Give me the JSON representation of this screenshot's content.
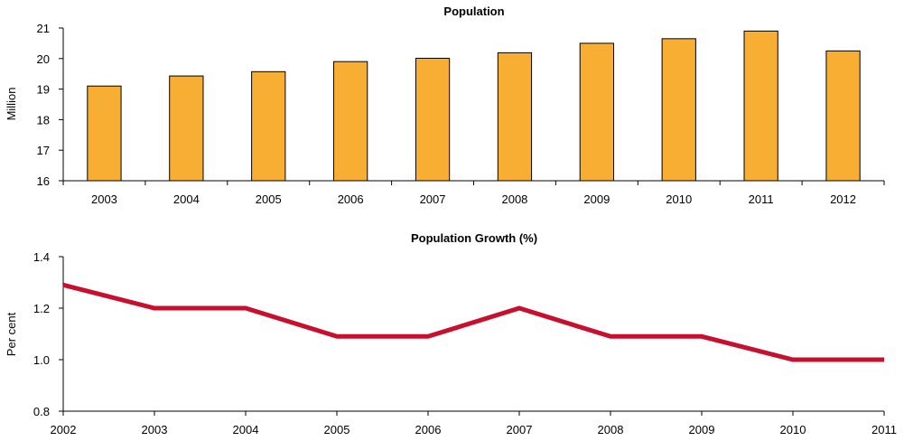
{
  "chart_data": [
    {
      "type": "bar",
      "title": "Population",
      "xlabel": "",
      "ylabel": "Million",
      "ylim": [
        16,
        21
      ],
      "yticks": [
        "16",
        "17",
        "18",
        "19",
        "20",
        "21"
      ],
      "categories": [
        "2003",
        "2004",
        "2005",
        "2006",
        "2007",
        "2008",
        "2009",
        "2010",
        "2011",
        "2012"
      ],
      "values": [
        19.1,
        19.43,
        19.57,
        19.9,
        20.01,
        20.19,
        20.5,
        20.65,
        20.9,
        20.25
      ],
      "bar_color": "#F7AE32",
      "grid": false
    },
    {
      "type": "line",
      "title": "Population Growth (%)",
      "xlabel": "",
      "ylabel": "Per cent",
      "ylim": [
        0.8,
        1.4
      ],
      "yticks": [
        "0.8",
        "1.0",
        "1.2",
        "1.4"
      ],
      "x": [
        "2002",
        "2003",
        "2004",
        "2005",
        "2006",
        "2007",
        "2008",
        "2009",
        "2010",
        "2011"
      ],
      "values": [
        1.29,
        1.2,
        1.2,
        1.09,
        1.09,
        1.2,
        1.09,
        1.09,
        1.0,
        1.0
      ],
      "line_color": "#C8102E",
      "grid": false
    }
  ]
}
